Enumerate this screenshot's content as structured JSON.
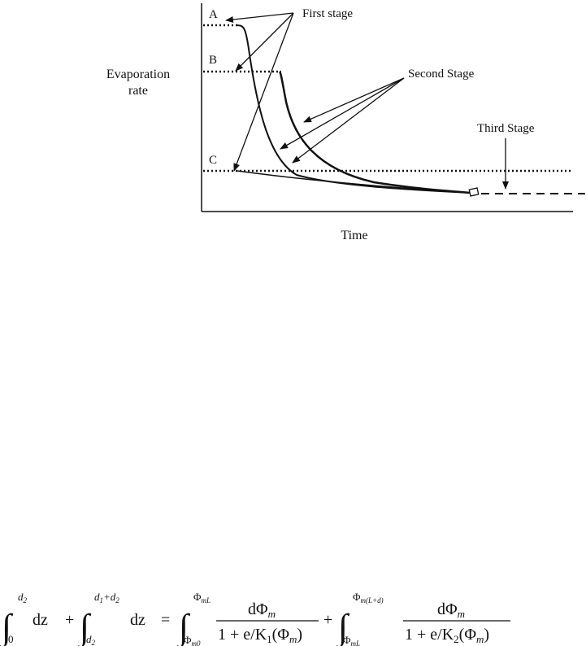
{
  "diagram": {
    "y_label_line1": "Evaporation",
    "y_label_line2": "rate",
    "x_label": "Time",
    "level_labels": [
      "A",
      "B",
      "C"
    ],
    "stage_labels": {
      "first": "First stage",
      "second": "Second Stage",
      "third": "Third Stage"
    }
  },
  "equation": {
    "d2": "d",
    "d2sub": "2",
    "dz": "dz",
    "plus": "+",
    "eqsign": "=",
    "zero": "0",
    "d1pd2_a": "d",
    "d1pd2_a_sub": "1",
    "d1pd2_plus": "+d",
    "d1pd2_b_sub": "2",
    "phi": "Φ",
    "mL": "mL",
    "m0": "m0",
    "mLd": "m(L+d)",
    "numerator": "dΦ",
    "num_sub": "m",
    "denom1_pre": "1 + e/K",
    "denom1_sub": "1",
    "denom_mid": "(Φ",
    "denom_msub": "m",
    "denom_close": ")",
    "denom2_sub": "2"
  }
}
